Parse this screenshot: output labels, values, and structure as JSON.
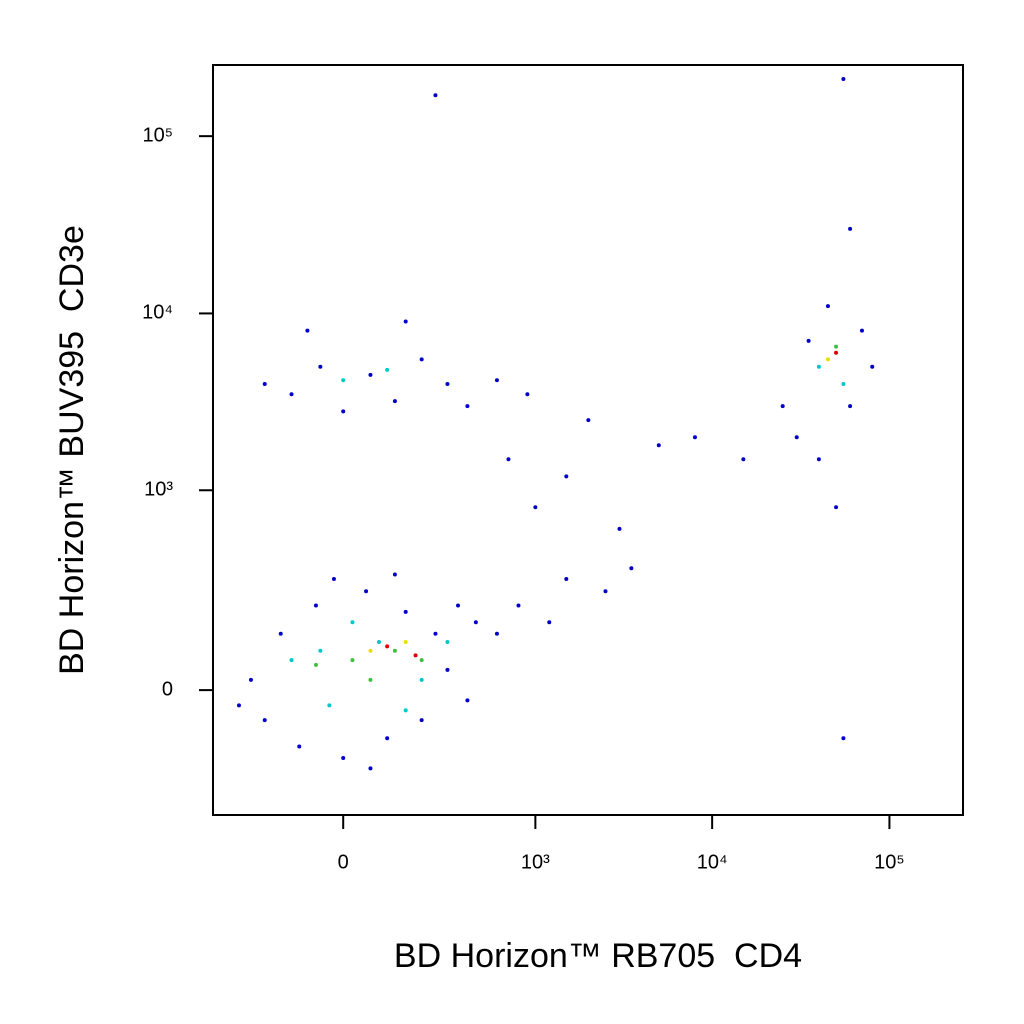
{
  "chart_data": {
    "type": "scatter",
    "x_label": "BD Horizon™ RB705  CD4",
    "y_label": "BD Horizon™ BUV395  CD3e",
    "xscale": "biexponential",
    "yscale": "biexponential",
    "xlim": [
      -435,
      260000
    ],
    "ylim": [
      -365,
      252000
    ],
    "xticks": [
      0,
      {
        "value": 1000,
        "label": "10³"
      },
      {
        "value": 10000,
        "label": "10⁴"
      },
      {
        "value": 100000,
        "label": "10⁵"
      }
    ],
    "yticks": [
      0,
      {
        "value": 1000,
        "label": "10³"
      },
      {
        "value": 10000,
        "label": "10⁴"
      },
      {
        "value": 100000,
        "label": "10⁵"
      }
    ],
    "series": [
      {
        "color": "#0000c8",
        "x": [
          -250,
          -200,
          -150,
          -100,
          -60,
          0,
          50,
          100,
          150,
          200,
          250,
          300,
          350,
          400,
          450,
          600,
          800,
          1200,
          1500,
          2500,
          3500,
          -300,
          120,
          -20,
          60,
          -200,
          -120,
          -50,
          0,
          60,
          120,
          200,
          300,
          400,
          600,
          900,
          -80,
          150,
          700,
          1000,
          2000,
          3000,
          5000,
          1500,
          8000,
          15000,
          25000,
          30000,
          40000,
          60000,
          70000,
          35000,
          45000,
          80000,
          50000,
          55000,
          250,
          55000,
          60000
        ],
        "y": [
          20,
          -60,
          120,
          -120,
          200,
          -150,
          250,
          -100,
          180,
          -60,
          120,
          40,
          200,
          -20,
          150,
          120,
          200,
          150,
          300,
          250,
          350,
          -30,
          320,
          300,
          -180,
          4000,
          3500,
          5000,
          2800,
          4500,
          3200,
          5500,
          4000,
          3000,
          4200,
          3500,
          8000,
          9000,
          1500,
          800,
          2500,
          600,
          1800,
          1200,
          2000,
          1500,
          3000,
          2000,
          1500,
          3000,
          8000,
          7000,
          11000,
          5000,
          800,
          -100,
          170000,
          210000,
          30000
        ]
      },
      {
        "color": "#00c8c8",
        "x": [
          -50,
          80,
          200,
          -120,
          150,
          20,
          300,
          0,
          100,
          40000,
          55000,
          -30
        ],
        "y": [
          80,
          100,
          20,
          60,
          -40,
          150,
          100,
          4200,
          4800,
          5000,
          4000,
          -30
        ]
      },
      {
        "color": "#40c040",
        "x": [
          20,
          120,
          -60,
          200,
          50000,
          60
        ],
        "y": [
          60,
          80,
          50,
          60,
          6500,
          20
        ]
      },
      {
        "color": "#e8e000",
        "x": [
          60,
          150,
          45000
        ],
        "y": [
          80,
          100,
          5500
        ]
      },
      {
        "color": "#e00000",
        "x": [
          100,
          50000,
          180
        ],
        "y": [
          90,
          6000,
          70
        ]
      }
    ]
  }
}
